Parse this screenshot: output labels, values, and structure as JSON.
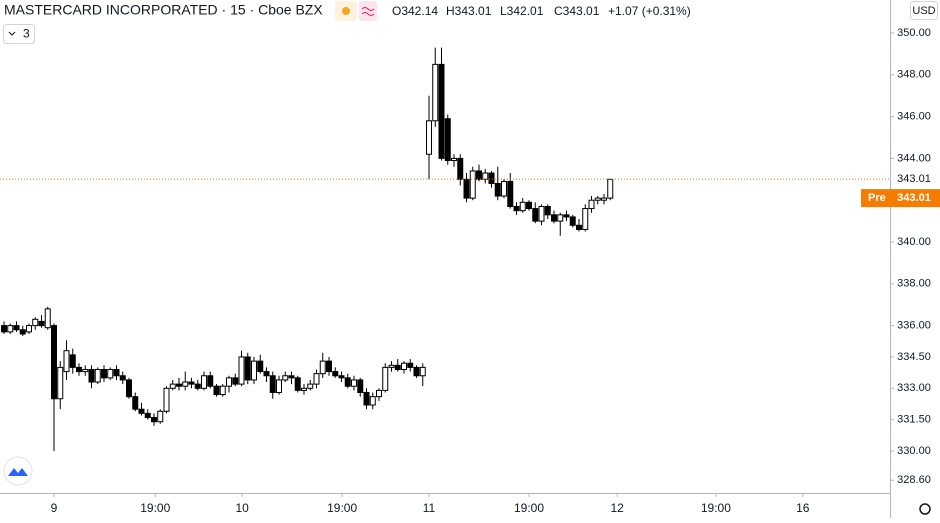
{
  "chart_data": {
    "type": "candlestick",
    "title": "MASTERCARD INCORPORATED · 15 · Cboe BZX",
    "legend_values": [
      "O342.14",
      "H343.01",
      "L342.01",
      "C343.01",
      "+1.07 (+0.31%)"
    ],
    "indicator_count": "3",
    "currency": "USD",
    "up_color": "#ffffff",
    "down_color": "#000000",
    "border_color": "#000000",
    "open": [
      336.0,
      335.7,
      336.0,
      335.8,
      335.7,
      336.0,
      336.2,
      335.9,
      336.0,
      332.5,
      333.8,
      334.6,
      334.0,
      333.8,
      333.9,
      333.3,
      333.9,
      333.5,
      333.9,
      333.6,
      333.4,
      332.6,
      332.0,
      331.8,
      331.6,
      331.4,
      331.9,
      333.0,
      333.2,
      333.1,
      333.3,
      333.2,
      333.0,
      333.6,
      333.1,
      332.7,
      333.1,
      333.5,
      333.2,
      334.5,
      333.4,
      334.3,
      333.8,
      333.6,
      332.8,
      333.4,
      333.6,
      333.5,
      332.9,
      333.0,
      333.2,
      333.7,
      334.3,
      333.8,
      333.6,
      333.5,
      333.1,
      333.4,
      332.8,
      332.2,
      332.6,
      332.9,
      334.0,
      334.1,
      333.9,
      334.2,
      334.0,
      333.6,
      344.2,
      345.8,
      348.5,
      345.9,
      343.9,
      344.0,
      343.0,
      342.1,
      343.4,
      343.0,
      343.3,
      342.8,
      342.2,
      342.9,
      341.7,
      341.5,
      341.9,
      341.6,
      341.0,
      341.7,
      341.3,
      341.0,
      341.3,
      341.2,
      340.8,
      340.6,
      341.6,
      342.0,
      342.0,
      342.1
    ],
    "high": [
      336.2,
      336.1,
      336.2,
      336.0,
      336.1,
      336.4,
      336.5,
      336.9,
      336.1,
      334.3,
      335.3,
      334.9,
      334.2,
      334.1,
      334.1,
      334.0,
      334.1,
      334.0,
      334.1,
      333.8,
      333.5,
      332.8,
      332.3,
      332.0,
      331.8,
      332.0,
      333.1,
      333.4,
      333.5,
      333.8,
      333.5,
      333.4,
      333.8,
      333.8,
      333.2,
      333.2,
      333.6,
      333.7,
      334.8,
      334.7,
      334.5,
      334.6,
      334.0,
      333.8,
      333.6,
      333.8,
      333.8,
      333.6,
      333.2,
      333.4,
      333.9,
      334.7,
      334.5,
      334.0,
      333.8,
      333.7,
      333.6,
      333.5,
      333.0,
      332.8,
      333.0,
      334.2,
      334.3,
      334.4,
      334.3,
      334.4,
      334.1,
      334.2,
      347.0,
      349.3,
      349.3,
      346.1,
      344.2,
      344.2,
      343.3,
      343.6,
      343.7,
      343.5,
      343.4,
      343.6,
      343.0,
      343.3,
      341.9,
      342.1,
      342.0,
      341.9,
      341.8,
      341.8,
      341.5,
      341.4,
      341.5,
      341.3,
      341.1,
      341.8,
      342.2,
      342.2,
      342.3,
      343.0
    ],
    "low": [
      335.6,
      335.6,
      335.7,
      335.5,
      335.6,
      335.8,
      335.9,
      335.8,
      330.0,
      332.0,
      333.4,
      333.7,
      333.6,
      333.6,
      333.0,
      333.2,
      333.3,
      333.4,
      333.4,
      333.2,
      332.5,
      331.9,
      331.7,
      331.5,
      331.2,
      331.3,
      331.8,
      332.9,
      332.9,
      332.9,
      333.0,
      332.9,
      332.9,
      333.0,
      332.6,
      332.6,
      332.8,
      333.1,
      333.1,
      333.2,
      333.2,
      333.7,
      333.3,
      332.5,
      332.7,
      333.3,
      333.2,
      332.8,
      332.7,
      332.9,
      333.0,
      333.5,
      333.6,
      333.5,
      333.3,
      333.0,
      332.9,
      332.6,
      332.0,
      332.0,
      332.4,
      332.8,
      333.8,
      333.8,
      333.7,
      333.8,
      333.5,
      333.1,
      343.0,
      345.5,
      343.9,
      343.7,
      343.6,
      342.7,
      341.9,
      342.0,
      342.9,
      342.8,
      342.6,
      342.0,
      342.1,
      341.6,
      341.3,
      341.4,
      341.5,
      340.9,
      340.8,
      341.1,
      340.9,
      340.3,
      341.0,
      340.7,
      340.5,
      340.5,
      341.4,
      341.8,
      341.8,
      342.0
    ],
    "close": [
      335.7,
      336.0,
      335.8,
      335.6,
      336.0,
      336.3,
      336.0,
      336.8,
      332.5,
      334.0,
      334.8,
      334.0,
      333.8,
      333.9,
      333.3,
      333.9,
      333.5,
      333.9,
      333.6,
      333.4,
      332.6,
      332.0,
      331.8,
      331.6,
      331.4,
      331.9,
      333.0,
      333.2,
      333.1,
      333.3,
      333.2,
      333.0,
      333.6,
      333.1,
      332.7,
      333.1,
      333.5,
      333.2,
      334.5,
      333.4,
      334.3,
      333.8,
      333.6,
      332.8,
      333.4,
      333.6,
      333.5,
      332.9,
      333.0,
      333.2,
      333.7,
      334.3,
      333.8,
      333.6,
      333.5,
      333.1,
      333.4,
      332.8,
      332.2,
      332.6,
      332.9,
      334.0,
      334.1,
      333.9,
      334.2,
      334.0,
      333.6,
      334.0,
      345.8,
      348.5,
      344.0,
      343.9,
      344.0,
      343.0,
      342.1,
      343.4,
      343.0,
      343.3,
      342.8,
      342.2,
      342.9,
      341.7,
      341.5,
      341.9,
      341.6,
      341.0,
      341.7,
      341.3,
      341.0,
      341.3,
      341.2,
      340.8,
      340.6,
      341.6,
      342.0,
      342.1,
      342.1,
      343.0
    ],
    "xlim": [
      -0.64,
      141.76
    ],
    "xticks": [
      {
        "value": 8,
        "label": "9"
      },
      {
        "value": 24.2,
        "label": "19:00"
      },
      {
        "value": 38.1,
        "label": "10"
      },
      {
        "value": 54.1,
        "label": "19:00"
      },
      {
        "value": 68,
        "label": "11"
      },
      {
        "value": 84,
        "label": "19:00"
      },
      {
        "value": 98.1,
        "label": "12"
      },
      {
        "value": 113.9,
        "label": "19:00"
      },
      {
        "value": 127.8,
        "label": "16"
      }
    ],
    "ylim": [
      327.99,
      351.58
    ],
    "yticks": [
      {
        "value": 350,
        "label": "350.00"
      },
      {
        "value": 348,
        "label": "348.00"
      },
      {
        "value": 346,
        "label": "346.00"
      },
      {
        "value": 344,
        "label": "344.00"
      },
      {
        "value": 340,
        "label": "340.00"
      },
      {
        "value": 338,
        "label": "338.00"
      },
      {
        "value": 336,
        "label": "336.00"
      },
      {
        "value": 334.5,
        "label": "334.50"
      },
      {
        "value": 333,
        "label": "333.00"
      },
      {
        "value": 331.5,
        "label": "331.50"
      },
      {
        "value": 330,
        "label": "330.00"
      },
      {
        "value": 328.6,
        "label": "328.60"
      }
    ],
    "price_line": {
      "value": 343.01,
      "label": "343.01",
      "color": "#f57c00"
    },
    "pre_market": {
      "label": "Pre",
      "price_label": "343.01",
      "color": "#f57c00"
    }
  }
}
